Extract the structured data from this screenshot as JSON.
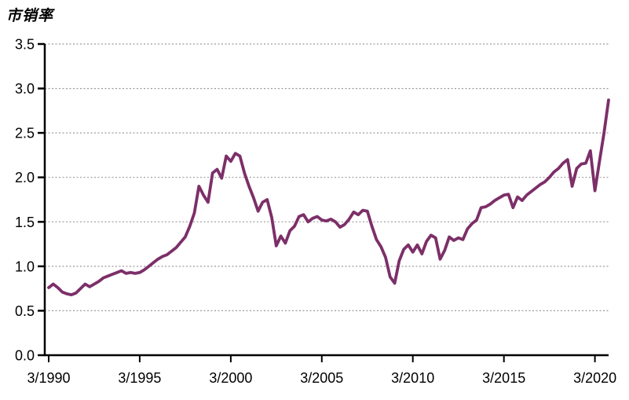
{
  "title": "市销率",
  "chart_data": {
    "type": "line",
    "title": "市销率",
    "title_meaning": "Price-to-Sales Ratio",
    "frequency": "quarterly",
    "x_start": "3/1990",
    "x_end": "12/2020",
    "x_tick_labels": [
      "3/1990",
      "3/1995",
      "3/2000",
      "3/2005",
      "3/2010",
      "3/2015",
      "3/2020"
    ],
    "x_tick_indices": [
      0,
      20,
      40,
      60,
      80,
      100,
      120
    ],
    "y_ticks": [
      0.0,
      0.5,
      1.0,
      1.5,
      2.0,
      2.5,
      3.0,
      3.5
    ],
    "ylim": [
      0,
      3.5
    ],
    "grid": "horizontal-dotted",
    "legend": "none",
    "colors": {
      "line": "#7C2F68",
      "axis": "#000000",
      "grid": "#9B9B9B",
      "text": "#000000",
      "background": "#FFFFFF"
    },
    "series": [
      {
        "name": "市销率",
        "color": "#7C2F68",
        "values": [
          0.76,
          0.8,
          0.76,
          0.71,
          0.69,
          0.68,
          0.7,
          0.75,
          0.8,
          0.77,
          0.8,
          0.83,
          0.87,
          0.89,
          0.91,
          0.93,
          0.95,
          0.92,
          0.93,
          0.92,
          0.93,
          0.96,
          1.0,
          1.04,
          1.08,
          1.11,
          1.13,
          1.17,
          1.21,
          1.27,
          1.33,
          1.45,
          1.6,
          1.9,
          1.8,
          1.72,
          2.05,
          2.09,
          1.99,
          2.24,
          2.18,
          2.27,
          2.24,
          2.05,
          1.9,
          1.77,
          1.62,
          1.72,
          1.75,
          1.55,
          1.23,
          1.34,
          1.26,
          1.4,
          1.45,
          1.56,
          1.58,
          1.5,
          1.54,
          1.56,
          1.52,
          1.51,
          1.53,
          1.5,
          1.44,
          1.47,
          1.53,
          1.61,
          1.58,
          1.63,
          1.62,
          1.45,
          1.3,
          1.22,
          1.1,
          0.88,
          0.81,
          1.06,
          1.19,
          1.24,
          1.16,
          1.24,
          1.14,
          1.28,
          1.35,
          1.32,
          1.08,
          1.18,
          1.33,
          1.29,
          1.32,
          1.3,
          1.42,
          1.48,
          1.52,
          1.66,
          1.67,
          1.7,
          1.74,
          1.77,
          1.8,
          1.81,
          1.66,
          1.78,
          1.74,
          1.8,
          1.84,
          1.88,
          1.92,
          1.95,
          2.0,
          2.06,
          2.1,
          2.16,
          2.2,
          1.9,
          2.1,
          2.15,
          2.16,
          2.3,
          1.85,
          2.18,
          2.5,
          2.87
        ]
      }
    ]
  }
}
